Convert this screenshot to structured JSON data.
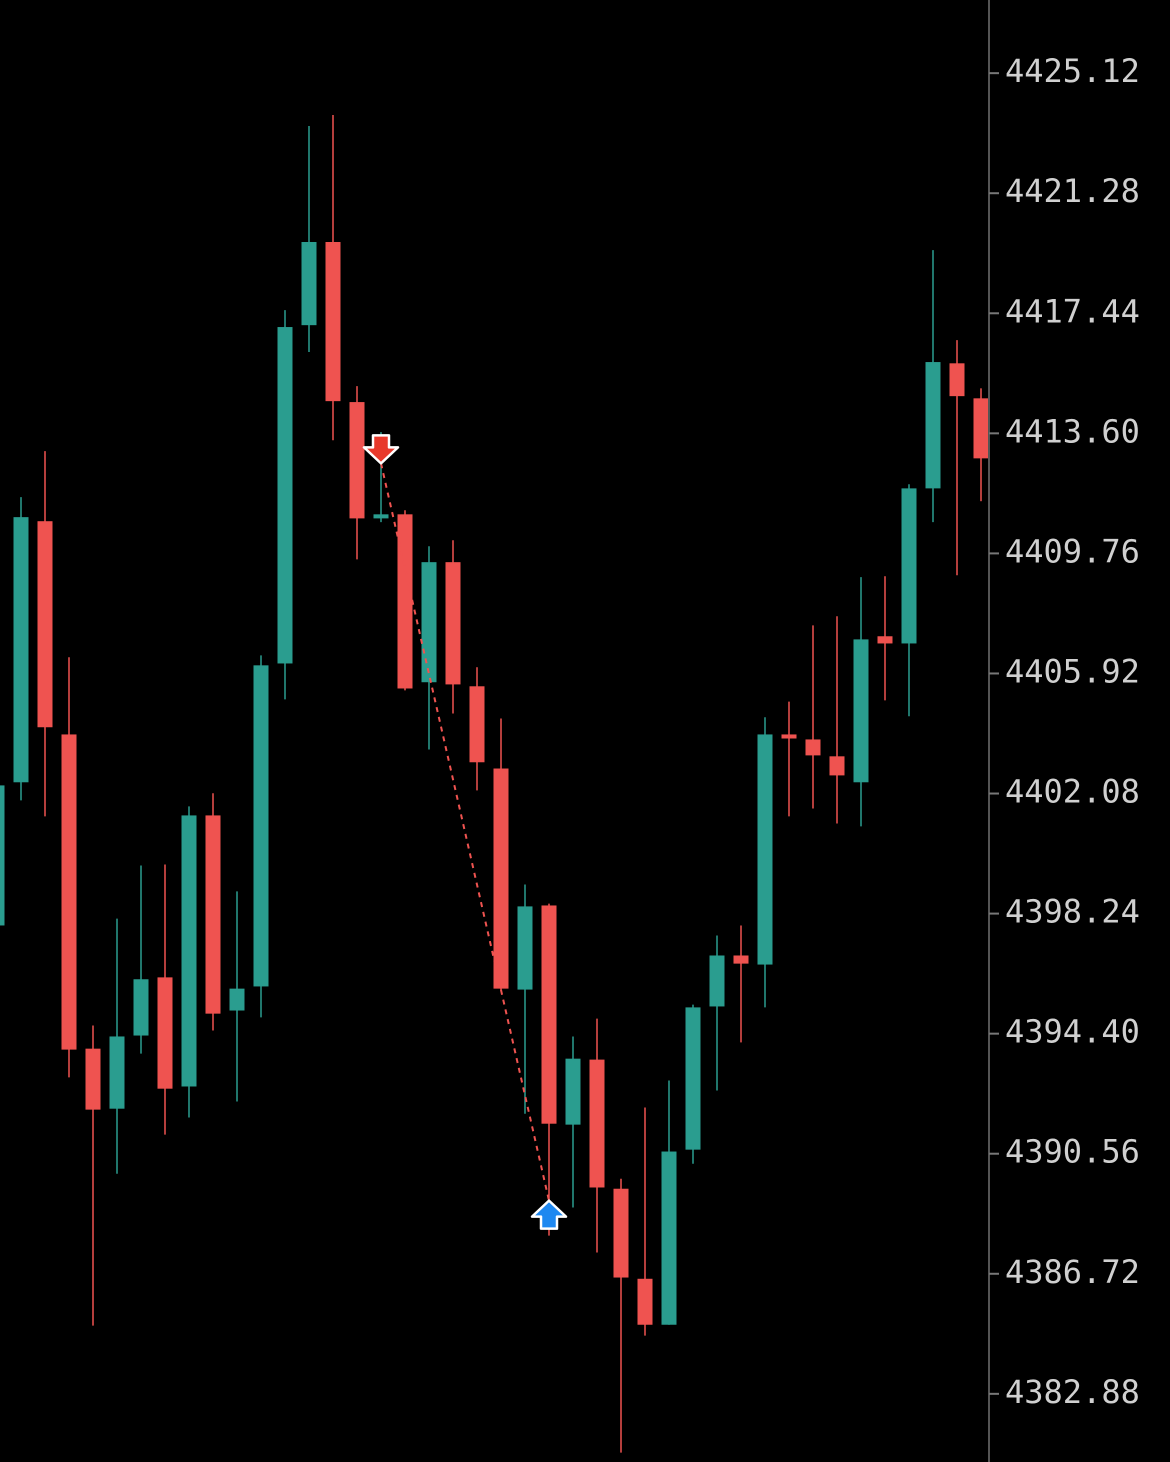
{
  "chart_data": {
    "type": "candlestick",
    "up_color": "#2a9d8f",
    "down_color": "#ef5350",
    "ylim": [
      4380.7,
      4427.46
    ],
    "yticks": [
      4425.12,
      4421.28,
      4417.44,
      {
        "value": 4413.6,
        "label": "4413.60"
      },
      4409.76,
      4405.92,
      4402.08,
      4398.24,
      {
        "value": 4394.4,
        "label": "4394.40"
      },
      4390.56,
      4386.72,
      4382.88
    ],
    "open": [
      4397.86,
      4402.44,
      4410.79,
      4403.97,
      4393.92,
      4392.0,
      4394.34,
      4396.2,
      4392.71,
      4401.38,
      4395.14,
      4395.91,
      4406.24,
      4417.06,
      4419.72,
      4414.6,
      4410.88,
      4411.01,
      4405.64,
      4409.48,
      4405.51,
      4402.88,
      4395.81,
      4398.5,
      4391.49,
      4393.57,
      4389.44,
      4386.56,
      4385.09,
      4390.69,
      4395.27,
      4396.9,
      4396.61,
      4403.97,
      4403.81,
      4403.27,
      4402.44,
      4407.11,
      4406.88,
      4411.84,
      4415.84,
      4414.72
    ],
    "high": [
      4402.5,
      4411.56,
      4413.03,
      4406.44,
      4394.66,
      4398.08,
      4399.78,
      4399.81,
      4401.67,
      4402.09,
      4398.95,
      4406.5,
      4417.54,
      4423.43,
      4423.78,
      4415.11,
      4413.64,
      4411.14,
      4409.99,
      4410.18,
      4406.12,
      4404.48,
      4399.17,
      4398.56,
      4394.31,
      4394.88,
      4389.76,
      4392.04,
      4392.9,
      4395.33,
      4397.54,
      4397.86,
      4404.52,
      4405.02,
      4407.46,
      4407.75,
      4409.0,
      4409.03,
      4411.97,
      4419.46,
      4416.58,
      4415.04
    ],
    "low": [
      4397.7,
      4401.86,
      4401.35,
      4393.0,
      4385.06,
      4389.92,
      4393.76,
      4391.17,
      4391.72,
      4394.5,
      4392.23,
      4394.92,
      4405.09,
      4416.2,
      4413.38,
      4409.57,
      4410.76,
      4405.38,
      4403.49,
      4404.64,
      4402.18,
      4395.78,
      4391.84,
      4387.94,
      4388.84,
      4387.4,
      4381.0,
      4384.74,
      4385.09,
      4390.24,
      4392.58,
      4394.12,
      4395.24,
      4401.35,
      4401.6,
      4401.12,
      4401.03,
      4405.06,
      4404.55,
      4410.76,
      4409.06,
      4411.43
    ],
    "close": [
      4402.34,
      4410.92,
      4404.2,
      4393.89,
      4391.97,
      4394.31,
      4396.14,
      4392.64,
      4401.38,
      4395.04,
      4395.84,
      4406.18,
      4417.0,
      4419.72,
      4414.63,
      4410.88,
      4411.01,
      4405.44,
      4409.48,
      4405.57,
      4403.08,
      4395.84,
      4398.47,
      4391.52,
      4393.6,
      4389.48,
      4386.6,
      4385.09,
      4390.63,
      4395.24,
      4396.9,
      4396.64,
      4403.97,
      4403.84,
      4403.3,
      4402.66,
      4407.01,
      4406.88,
      4411.84,
      4415.88,
      4414.79,
      4412.8
    ],
    "signals": [
      {
        "x": 16,
        "price": 4412.64,
        "direction": "down",
        "color": "#e8392b"
      },
      {
        "x": 23,
        "price": 4389.06,
        "direction": "up",
        "color": "#1e88f0"
      }
    ],
    "signal_line_color": "#ef5350"
  }
}
